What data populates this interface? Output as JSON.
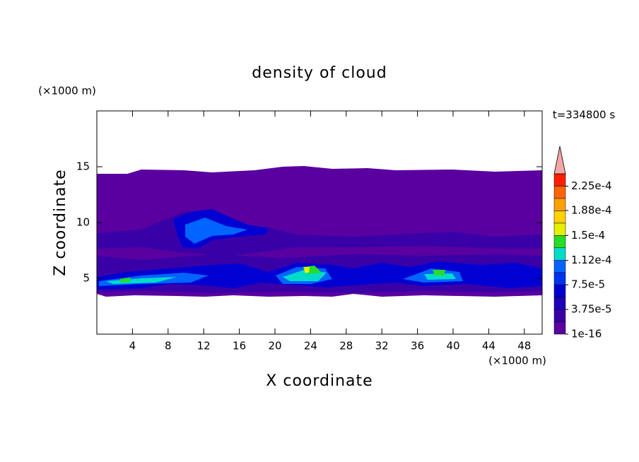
{
  "chart_data": {
    "type": "contour",
    "title": "density of cloud",
    "time_label": "t=334800 s",
    "x_label": "X coordinate",
    "y_label": "Z coordinate",
    "x_unit": "(×1000 m)",
    "y_unit": "(×1000 m)",
    "xlim": [
      0,
      50
    ],
    "xticks": [
      4,
      8,
      12,
      16,
      20,
      24,
      28,
      32,
      36,
      40,
      44,
      48
    ],
    "ylim": [
      0,
      20
    ],
    "yticks": [
      5,
      10,
      15
    ],
    "colorbar": {
      "lim": [
        1e-16,
        0.00024375
      ],
      "extend_color": "#f4a6a6",
      "colors": [
        "#5a00a0",
        "#3a00a8",
        "#1e00b8",
        "#0000d2",
        "#0032f0",
        "#0064ff",
        "#00dcc8",
        "#28dc28",
        "#e6f000",
        "#ffd200",
        "#ffa000",
        "#ff6400",
        "#ff1e00"
      ],
      "ticks": [
        {
          "value": 1e-16,
          "label": "1e-16"
        },
        {
          "value": 3.75e-05,
          "label": "3.75e-5"
        },
        {
          "value": 7.5e-05,
          "label": "7.5e-5"
        },
        {
          "value": 0.000112,
          "label": "1.12e-4"
        },
        {
          "value": 0.00015,
          "label": "1.5e-4"
        },
        {
          "value": 0.000188,
          "label": "1.88e-4"
        },
        {
          "value": 0.000225,
          "label": "2.25e-4"
        }
      ]
    }
  }
}
